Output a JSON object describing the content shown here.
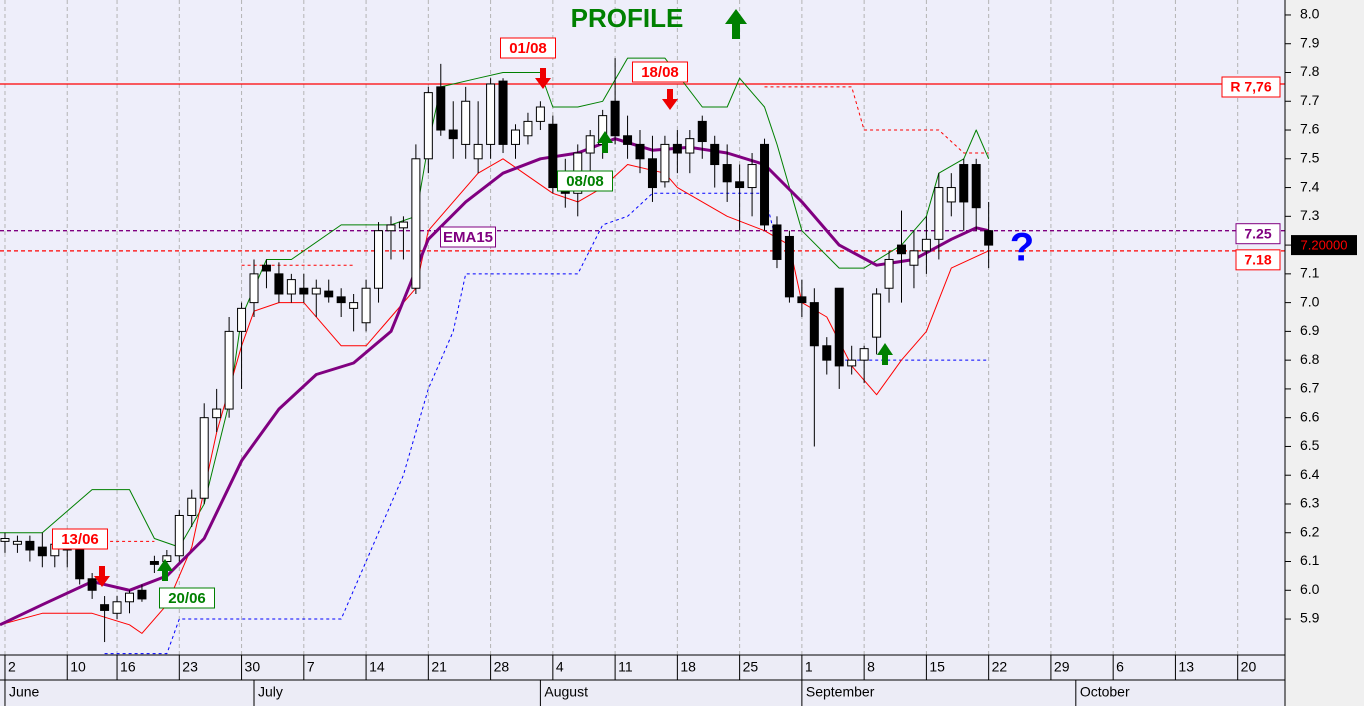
{
  "chart_data": {
    "type": "candlestick",
    "xlim": [
      -0.4,
      102.8
    ],
    "ylim": [
      5.775,
      8.052
    ],
    "xticks": [
      {
        "value": 0,
        "label": "2"
      },
      {
        "value": 5,
        "label": "10"
      },
      {
        "value": 9,
        "label": "16"
      },
      {
        "value": 14,
        "label": "23"
      },
      {
        "value": 19,
        "label": "30"
      },
      {
        "value": 24,
        "label": "7"
      },
      {
        "value": 29,
        "label": "14"
      },
      {
        "value": 34,
        "label": "21"
      },
      {
        "value": 39,
        "label": "28"
      },
      {
        "value": 44,
        "label": "4"
      },
      {
        "value": 49,
        "label": "11"
      },
      {
        "value": 54,
        "label": "18"
      },
      {
        "value": 59,
        "label": "25"
      },
      {
        "value": 64,
        "label": "1"
      },
      {
        "value": 69,
        "label": "8"
      },
      {
        "value": 74,
        "label": "15"
      },
      {
        "value": 79,
        "label": "22"
      },
      {
        "value": 84,
        "label": "29"
      },
      {
        "value": 89,
        "label": "6"
      },
      {
        "value": 94,
        "label": "13"
      },
      {
        "value": 99,
        "label": "20"
      }
    ],
    "month_ticks": [
      {
        "value": 0,
        "label": "June"
      },
      {
        "value": 20,
        "label": "July"
      },
      {
        "value": 43,
        "label": "August"
      },
      {
        "value": 64,
        "label": "September"
      },
      {
        "value": 86,
        "label": "October"
      }
    ],
    "yticks": [
      5.9,
      {
        "value": 6.0,
        "label": "6.0"
      },
      6.1,
      6.2,
      6.3,
      6.4,
      6.5,
      6.6,
      6.7,
      6.8,
      6.9,
      {
        "value": 7.0,
        "label": "7.0"
      },
      7.1,
      7.2,
      7.3,
      7.4,
      7.5,
      7.6,
      7.7,
      7.8,
      7.9,
      {
        "value": 8.0,
        "label": "8.0"
      }
    ],
    "grid": true,
    "candles": {
      "up_color": "#ffffff",
      "down_color": "#000000",
      "x": [
        0,
        1,
        2,
        3,
        4,
        5,
        6,
        7,
        8,
        9,
        10,
        11,
        12,
        13,
        14,
        15,
        16,
        17,
        18,
        19,
        20,
        21,
        22,
        23,
        24,
        25,
        26,
        27,
        28,
        29,
        30,
        31,
        32,
        33,
        34,
        35,
        36,
        37,
        38,
        39,
        40,
        41,
        42,
        43,
        44,
        45,
        46,
        47,
        48,
        49,
        50,
        51,
        52,
        53,
        54,
        55,
        56,
        57,
        58,
        59,
        60,
        61,
        62,
        63,
        64,
        65,
        66,
        67,
        68,
        69,
        70,
        71,
        72,
        73,
        74,
        75,
        76,
        77,
        78,
        79
      ],
      "open": [
        6.17,
        6.16,
        6.17,
        6.15,
        6.12,
        6.15,
        6.14,
        6.04,
        5.95,
        5.92,
        5.96,
        6.0,
        6.1,
        6.1,
        6.12,
        6.26,
        6.32,
        6.6,
        6.63,
        6.9,
        7.0,
        7.13,
        7.1,
        7.03,
        7.05,
        7.03,
        7.04,
        7.02,
        6.98,
        6.93,
        7.05,
        7.25,
        7.26,
        7.05,
        7.5,
        7.75,
        7.6,
        7.55,
        7.5,
        7.55,
        7.77,
        7.55,
        7.58,
        7.63,
        7.62,
        7.4,
        7.38,
        7.52,
        7.55,
        7.7,
        7.58,
        7.55,
        7.5,
        7.42,
        7.55,
        7.52,
        7.63,
        7.55,
        7.48,
        7.42,
        7.4,
        7.55,
        7.27,
        7.23,
        7.02,
        7.0,
        6.85,
        7.05,
        6.78,
        6.8,
        6.88,
        7.05,
        7.2,
        7.13,
        7.18,
        7.22,
        7.35,
        7.48,
        7.48,
        7.25
      ],
      "high": [
        6.2,
        6.19,
        6.19,
        6.2,
        6.18,
        6.18,
        6.16,
        6.06,
        5.98,
        5.98,
        6.0,
        6.02,
        6.12,
        6.14,
        6.28,
        6.35,
        6.65,
        6.7,
        6.95,
        7.0,
        7.15,
        7.15,
        7.14,
        7.1,
        7.1,
        7.08,
        7.08,
        7.05,
        7.03,
        7.08,
        7.28,
        7.3,
        7.3,
        7.55,
        7.75,
        7.83,
        7.7,
        7.75,
        7.7,
        7.78,
        7.78,
        7.62,
        7.66,
        7.7,
        7.65,
        7.5,
        7.55,
        7.6,
        7.67,
        7.85,
        7.65,
        7.6,
        7.58,
        7.58,
        7.6,
        7.6,
        7.65,
        7.58,
        7.55,
        7.48,
        7.52,
        7.57,
        7.3,
        7.25,
        7.08,
        7.05,
        6.88,
        7.05,
        6.85,
        6.85,
        7.05,
        7.18,
        7.32,
        7.25,
        7.3,
        7.45,
        7.45,
        7.5,
        7.5,
        7.35
      ],
      "low": [
        6.13,
        6.13,
        6.1,
        6.08,
        6.08,
        6.08,
        6.02,
        5.97,
        5.82,
        5.9,
        5.92,
        5.96,
        6.06,
        6.08,
        6.1,
        6.22,
        6.3,
        6.55,
        6.6,
        6.7,
        6.95,
        7.05,
        7.0,
        7.0,
        7.0,
        6.95,
        7.0,
        6.95,
        6.9,
        6.9,
        7.0,
        7.15,
        7.15,
        7.03,
        7.45,
        7.58,
        7.5,
        7.5,
        7.45,
        7.5,
        7.52,
        7.5,
        7.55,
        7.6,
        7.38,
        7.33,
        7.3,
        7.45,
        7.5,
        7.55,
        7.5,
        7.45,
        7.35,
        7.4,
        7.45,
        7.45,
        7.5,
        7.4,
        7.35,
        7.25,
        7.3,
        7.25,
        7.12,
        7.0,
        6.95,
        6.5,
        6.75,
        6.7,
        6.75,
        6.72,
        6.82,
        7.0,
        7.0,
        7.05,
        7.1,
        7.15,
        7.3,
        7.25,
        7.25,
        7.12
      ],
      "close": [
        6.18,
        6.17,
        6.14,
        6.12,
        6.16,
        6.14,
        6.04,
        6.0,
        5.93,
        5.96,
        5.99,
        5.97,
        6.09,
        6.12,
        6.26,
        6.32,
        6.6,
        6.63,
        6.9,
        6.98,
        7.1,
        7.11,
        7.03,
        7.08,
        7.03,
        7.05,
        7.02,
        7.0,
        7.0,
        7.05,
        7.25,
        7.27,
        7.28,
        7.5,
        7.73,
        7.6,
        7.57,
        7.7,
        7.55,
        7.76,
        7.55,
        7.6,
        7.63,
        7.68,
        7.4,
        7.38,
        7.52,
        7.58,
        7.65,
        7.58,
        7.55,
        7.5,
        7.4,
        7.55,
        7.52,
        7.57,
        7.56,
        7.48,
        7.42,
        7.4,
        7.48,
        7.27,
        7.15,
        7.02,
        7.0,
        6.85,
        6.8,
        6.78,
        6.8,
        6.84,
        7.03,
        7.15,
        7.17,
        7.18,
        7.22,
        7.4,
        7.4,
        7.35,
        7.33,
        7.2
      ]
    },
    "series": [
      {
        "color": "#0000ff",
        "style": "dashed",
        "width": 1,
        "x": [
          8,
          13,
          14,
          27,
          28,
          30,
          32,
          34,
          36,
          37,
          46,
          48,
          50,
          52,
          61,
          62,
          64,
          67,
          79
        ],
        "values": [
          5.78,
          5.78,
          5.9,
          5.9,
          6.0,
          6.2,
          6.4,
          6.7,
          6.9,
          7.1,
          7.1,
          7.27,
          7.3,
          7.38,
          7.38,
          7.2,
          null,
          6.8,
          6.8
        ]
      },
      {
        "color": "#ff0000",
        "style": "dashed",
        "width": 1,
        "x": [
          7,
          12,
          13,
          19,
          28,
          29,
          61,
          68,
          69,
          75,
          77,
          79
        ],
        "values": [
          6.17,
          6.17,
          null,
          7.13,
          7.13,
          null,
          7.75,
          7.75,
          7.6,
          7.6,
          7.52,
          7.52
        ]
      },
      {
        "color": "#008000",
        "style": "solid",
        "width": 1,
        "x": [
          -0.4,
          3,
          7,
          10,
          12,
          14,
          16,
          18,
          19,
          21,
          23,
          27,
          31,
          33,
          34,
          35,
          38,
          40,
          43,
          44,
          46,
          48,
          50,
          53,
          56,
          58,
          59,
          61,
          62,
          64,
          67,
          69,
          72,
          74,
          75,
          77,
          78,
          79
        ],
        "values": [
          6.2,
          6.2,
          6.35,
          6.35,
          6.18,
          6.15,
          6.3,
          6.65,
          6.95,
          7.15,
          7.15,
          7.27,
          7.27,
          7.3,
          7.55,
          7.75,
          7.78,
          7.8,
          7.8,
          7.68,
          7.68,
          7.7,
          7.85,
          7.85,
          7.68,
          7.68,
          7.78,
          7.68,
          7.55,
          7.25,
          7.12,
          7.12,
          7.2,
          7.3,
          7.45,
          7.5,
          7.6,
          7.5
        ]
      },
      {
        "color": "#ff0000",
        "style": "solid",
        "width": 1,
        "x": [
          -0.4,
          3,
          7,
          10,
          11,
          13,
          15,
          17,
          19,
          20,
          22,
          24,
          27,
          29,
          31,
          33,
          34,
          36,
          38,
          40,
          44,
          46,
          48,
          50,
          53,
          54,
          58,
          61,
          63,
          64,
          66,
          68,
          70,
          72,
          74,
          76,
          79
        ],
        "values": [
          5.88,
          5.92,
          5.92,
          5.88,
          5.85,
          5.95,
          6.15,
          6.55,
          6.85,
          6.97,
          7.0,
          7.0,
          6.85,
          6.85,
          6.95,
          7.05,
          7.25,
          7.35,
          7.45,
          7.5,
          7.38,
          7.35,
          7.4,
          7.48,
          7.45,
          7.4,
          7.3,
          7.25,
          7.2,
          7.0,
          6.95,
          6.78,
          6.68,
          6.8,
          6.9,
          7.12,
          7.18
        ]
      },
      {
        "color": "#800080",
        "style": "solid",
        "width": 3,
        "x": [
          -0.4,
          3,
          7,
          10,
          13,
          16,
          19,
          22,
          25,
          28,
          31,
          34,
          37,
          40,
          43,
          46,
          49,
          52,
          55,
          58,
          61,
          64,
          67,
          70,
          73,
          76,
          78,
          79
        ],
        "values": [
          5.88,
          5.95,
          6.03,
          6.0,
          6.05,
          6.18,
          6.45,
          6.63,
          6.75,
          6.79,
          6.9,
          7.22,
          7.35,
          7.45,
          7.5,
          7.52,
          7.57,
          7.53,
          7.54,
          7.52,
          7.48,
          7.35,
          7.2,
          7.13,
          7.15,
          7.22,
          7.26,
          7.25
        ]
      }
    ],
    "levels": [
      {
        "value": 7.76,
        "label": "R 7,76",
        "color": "#ff0000",
        "style": "solid"
      },
      {
        "value": 7.25,
        "label": "7.25",
        "color": "#800080",
        "style": "dashed"
      },
      {
        "value": 7.18,
        "label": "7.18",
        "color": "#ff0000",
        "style": "dashed"
      }
    ],
    "last_price": {
      "value": 7.2,
      "label": "7.20000",
      "color": "#ff0000"
    },
    "annotations": [
      {
        "text": "13/06",
        "color": "#ff0000"
      },
      {
        "text": "20/06",
        "color": "#008000"
      },
      {
        "text": "01/08",
        "color": "#ff0000"
      },
      {
        "text": "18/08",
        "color": "#ff0000"
      },
      {
        "text": "08/08",
        "color": "#008000"
      },
      {
        "text": "EMA15",
        "color": "#800080"
      },
      {
        "text": "PROFILE",
        "color": "#008000"
      },
      {
        "text": "?",
        "color": "#0000ff"
      }
    ]
  }
}
